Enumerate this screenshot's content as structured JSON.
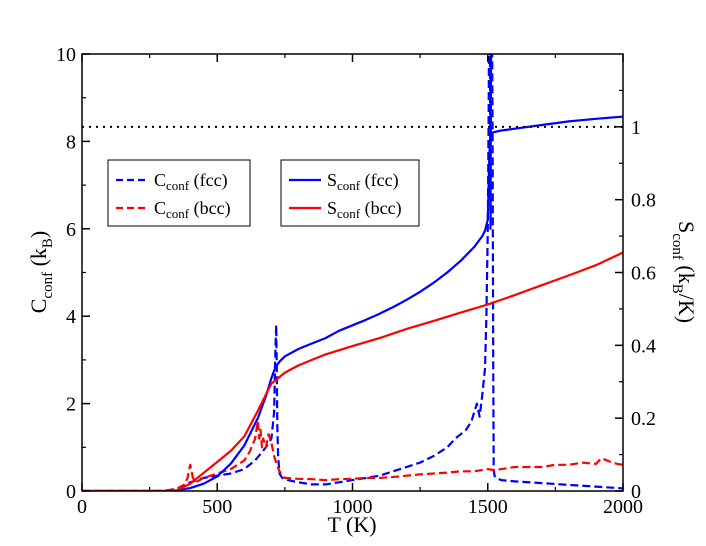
{
  "chart_data": {
    "type": "line",
    "xlabel": "T (K)",
    "xlim": [
      0,
      2000
    ],
    "x_ticks": [
      0,
      500,
      1000,
      1500,
      2000
    ],
    "y_left": {
      "label_main": "C",
      "label_sub": "conf",
      "label_unit_main": " (k",
      "label_unit_sub": "B",
      "label_close": ")",
      "lim": [
        0,
        10
      ],
      "ticks": [
        0,
        2,
        4,
        6,
        8,
        10
      ]
    },
    "y_right": {
      "label_main": "S",
      "label_sub": "conf",
      "label_unit_main": " (k",
      "label_unit_sub": "B",
      "label_close": "/K)",
      "lim": [
        0,
        1.2
      ],
      "ticks": [
        0,
        0.2,
        0.4,
        0.6,
        0.8,
        1
      ],
      "tick_labels": [
        "0",
        "0.2",
        "0.4",
        "0.6",
        "0.8",
        "1"
      ]
    },
    "reference_line": {
      "axis": "right",
      "y": 1.0,
      "style": "dotted",
      "color": "#000000"
    },
    "legend_c": [
      {
        "main": "C",
        "sub": "conf",
        "suffix": " (fcc)",
        "color": "#0000ff",
        "style": "dashed"
      },
      {
        "main": "C",
        "sub": "conf",
        "suffix": " (bcc)",
        "color": "#ff0000",
        "style": "dashed"
      }
    ],
    "legend_s": [
      {
        "main": "S",
        "sub": "conf",
        "suffix": " (fcc)",
        "color": "#0000ff",
        "style": "solid"
      },
      {
        "main": "S",
        "sub": "conf",
        "suffix": " (bcc)",
        "color": "#ff0000",
        "style": "solid"
      }
    ],
    "series": [
      {
        "name": "C_conf (fcc)",
        "axis": "left",
        "color": "#0000ff",
        "style": "dashed",
        "x": [
          0,
          300,
          350,
          400,
          450,
          500,
          550,
          600,
          640,
          660,
          680,
          700,
          710,
          715,
          718,
          720,
          722,
          725,
          730,
          740,
          760,
          800,
          850,
          900,
          950,
          1000,
          1050,
          1100,
          1150,
          1200,
          1250,
          1300,
          1350,
          1380,
          1400,
          1420,
          1440,
          1450,
          1460,
          1470,
          1480,
          1490,
          1495,
          1500,
          1503,
          1505,
          1508,
          1510,
          1512,
          1514,
          1516,
          1518,
          1520,
          1522,
          1525,
          1530,
          1550,
          1600,
          1700,
          1800,
          1900,
          2000
        ],
        "y": [
          0,
          0,
          0.05,
          0.2,
          0.3,
          0.35,
          0.4,
          0.5,
          0.7,
          0.85,
          1.0,
          1.2,
          1.8,
          3.2,
          3.8,
          2.8,
          1.5,
          0.8,
          0.4,
          0.3,
          0.25,
          0.2,
          0.15,
          0.15,
          0.2,
          0.25,
          0.3,
          0.35,
          0.45,
          0.55,
          0.65,
          0.8,
          1.0,
          1.2,
          1.3,
          1.4,
          1.6,
          1.8,
          2.0,
          1.7,
          2.2,
          2.8,
          4.0,
          6.0,
          8.5,
          10.5,
          10.5,
          6.0,
          9.8,
          10.5,
          10.5,
          8.0,
          3.0,
          0.5,
          0.35,
          0.3,
          0.25,
          0.22,
          0.18,
          0.14,
          0.1,
          0.06
        ]
      },
      {
        "name": "C_conf (bcc)",
        "axis": "left",
        "color": "#ff0000",
        "style": "dashed",
        "x": [
          0,
          300,
          350,
          380,
          390,
          400,
          410,
          420,
          450,
          500,
          550,
          600,
          620,
          640,
          650,
          655,
          660,
          665,
          670,
          680,
          690,
          700,
          710,
          720,
          730,
          740,
          750,
          800,
          850,
          900,
          950,
          1000,
          1050,
          1100,
          1150,
          1200,
          1250,
          1300,
          1350,
          1400,
          1450,
          1500,
          1520,
          1550,
          1600,
          1650,
          1700,
          1750,
          1800,
          1850,
          1900,
          1920,
          1940,
          1960,
          1980,
          2000
        ],
        "y": [
          0,
          0,
          0.05,
          0.15,
          0.3,
          0.6,
          0.3,
          0.2,
          0.3,
          0.4,
          0.5,
          0.7,
          0.9,
          1.2,
          1.6,
          1.2,
          1.4,
          1.0,
          1.2,
          1.0,
          1.3,
          1.1,
          0.8,
          0.6,
          0.45,
          0.35,
          0.3,
          0.28,
          0.27,
          0.25,
          0.27,
          0.28,
          0.3,
          0.3,
          0.32,
          0.35,
          0.38,
          0.4,
          0.42,
          0.45,
          0.45,
          0.5,
          0.48,
          0.5,
          0.55,
          0.55,
          0.55,
          0.6,
          0.6,
          0.65,
          0.62,
          0.75,
          0.7,
          0.65,
          0.62,
          0.6
        ]
      },
      {
        "name": "S_conf (fcc)",
        "axis": "right",
        "color": "#0000ff",
        "style": "solid",
        "x": [
          0,
          300,
          350,
          400,
          450,
          500,
          550,
          600,
          650,
          680,
          700,
          710,
          720,
          730,
          750,
          800,
          850,
          900,
          950,
          1000,
          1050,
          1100,
          1150,
          1200,
          1250,
          1300,
          1350,
          1400,
          1450,
          1480,
          1490,
          1495,
          1500,
          1502,
          1505,
          1508,
          1510,
          1520,
          1550,
          1600,
          1700,
          1800,
          1900,
          2000
        ],
        "y": [
          0,
          0,
          0.002,
          0.008,
          0.02,
          0.04,
          0.075,
          0.125,
          0.2,
          0.26,
          0.31,
          0.33,
          0.345,
          0.355,
          0.37,
          0.39,
          0.405,
          0.42,
          0.44,
          0.455,
          0.47,
          0.487,
          0.505,
          0.525,
          0.547,
          0.572,
          0.6,
          0.632,
          0.67,
          0.7,
          0.715,
          0.73,
          0.745,
          0.8,
          0.9,
          0.96,
          0.98,
          0.985,
          0.99,
          0.995,
          1.005,
          1.015,
          1.022,
          1.028
        ]
      },
      {
        "name": "S_conf (bcc)",
        "axis": "right",
        "color": "#ff0000",
        "style": "solid",
        "x": [
          0,
          300,
          350,
          400,
          450,
          500,
          550,
          600,
          650,
          700,
          750,
          800,
          900,
          1000,
          1100,
          1200,
          1300,
          1400,
          1500,
          1600,
          1700,
          1800,
          1900,
          2000
        ],
        "y": [
          0,
          0,
          0.002,
          0.02,
          0.05,
          0.08,
          0.11,
          0.15,
          0.22,
          0.295,
          0.325,
          0.345,
          0.375,
          0.398,
          0.42,
          0.445,
          0.467,
          0.49,
          0.512,
          0.538,
          0.565,
          0.592,
          0.62,
          0.655
        ]
      }
    ]
  }
}
